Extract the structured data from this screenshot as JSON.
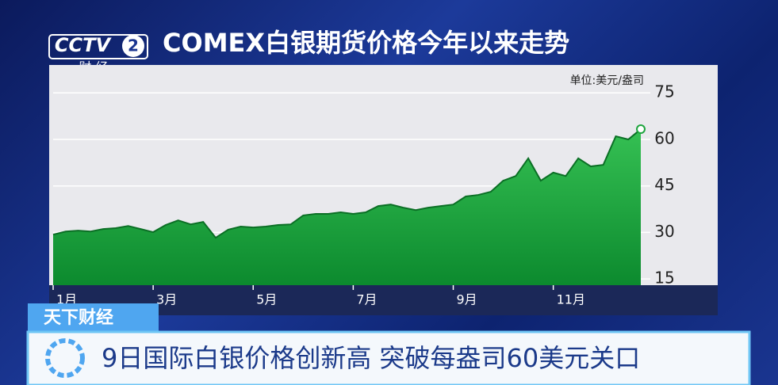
{
  "logo": {
    "channel": "CCTV",
    "number": "2",
    "sub": "财 经"
  },
  "program": "天下财经",
  "headline": "9日国际白银价格创新高 突破每盎司60美元关口",
  "chart_data": {
    "type": "area",
    "title": "COMEX白银期货价格今年以来走势",
    "unit_label": "单位:美元/盎司",
    "categories": [
      "1月",
      null,
      null,
      null,
      null,
      null,
      null,
      null,
      "3月",
      null,
      null,
      null,
      null,
      null,
      null,
      null,
      "5月",
      null,
      null,
      null,
      null,
      null,
      null,
      null,
      "7月",
      null,
      null,
      null,
      null,
      null,
      null,
      null,
      "9月",
      null,
      null,
      null,
      null,
      null,
      null,
      null,
      "11月",
      null,
      null,
      null,
      null,
      null,
      null,
      null
    ],
    "values": [
      29.3,
      30.3,
      30.6,
      30.3,
      31.1,
      31.4,
      32.1,
      31.1,
      30.1,
      32.4,
      33.9,
      32.6,
      33.4,
      28.3,
      30.9,
      31.9,
      31.6,
      31.9,
      32.4,
      32.6,
      35.5,
      36,
      36,
      36.5,
      36,
      36.5,
      38.5,
      39,
      38,
      37.2,
      38,
      38.5,
      39,
      41.6,
      42.1,
      43.1,
      46.7,
      48.2,
      53.9,
      46.7,
      49.3,
      48.2,
      53.9,
      51.3,
      51.8,
      61,
      60,
      63.3
    ],
    "color": "#1fa53f",
    "line_color": "#0b6f25",
    "ylim": [
      13,
      84
    ],
    "yticks": [
      15,
      30,
      45,
      60,
      75
    ],
    "grid": true,
    "last_marker": true
  }
}
